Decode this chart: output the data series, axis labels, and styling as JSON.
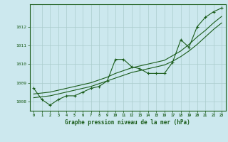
{
  "title": "Graphe pression niveau de la mer (hPa)",
  "background_color": "#cce8ee",
  "grid_color": "#aacccc",
  "line_color": "#1a5c1a",
  "x_values": [
    0,
    1,
    2,
    3,
    4,
    5,
    6,
    7,
    8,
    9,
    10,
    11,
    12,
    13,
    14,
    15,
    16,
    17,
    18,
    19,
    20,
    21,
    22,
    23
  ],
  "series1": [
    1008.7,
    1008.1,
    1007.8,
    1008.1,
    1008.3,
    1008.3,
    1008.5,
    1008.7,
    1008.8,
    1009.1,
    1010.25,
    1010.25,
    1009.85,
    1009.75,
    1009.5,
    1009.5,
    1009.5,
    1010.1,
    1011.3,
    1010.9,
    1012.0,
    1012.5,
    1012.8,
    1013.0
  ],
  "series2": [
    1008.2,
    1008.25,
    1008.3,
    1008.4,
    1008.5,
    1008.6,
    1008.7,
    1008.8,
    1008.95,
    1009.1,
    1009.25,
    1009.4,
    1009.55,
    1009.65,
    1009.75,
    1009.85,
    1009.95,
    1010.15,
    1010.4,
    1010.7,
    1011.05,
    1011.45,
    1011.85,
    1012.2
  ],
  "series3": [
    1008.4,
    1008.45,
    1008.5,
    1008.6,
    1008.7,
    1008.8,
    1008.9,
    1009.0,
    1009.15,
    1009.3,
    1009.5,
    1009.65,
    1009.8,
    1009.9,
    1010.0,
    1010.1,
    1010.2,
    1010.45,
    1010.7,
    1011.05,
    1011.45,
    1011.8,
    1012.2,
    1012.55
  ],
  "ylim": [
    1007.5,
    1013.2
  ],
  "xlim": [
    -0.5,
    23.5
  ],
  "yticks": [
    1008,
    1009,
    1010,
    1011,
    1012
  ],
  "xticks": [
    0,
    1,
    2,
    3,
    4,
    5,
    6,
    7,
    8,
    9,
    10,
    11,
    12,
    13,
    14,
    15,
    16,
    17,
    18,
    19,
    20,
    21,
    22,
    23
  ]
}
